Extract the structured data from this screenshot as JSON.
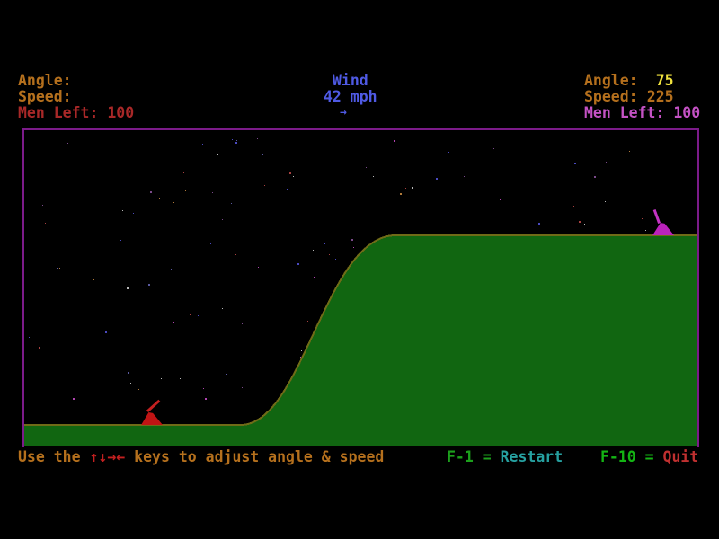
{
  "hud": {
    "left_player": {
      "angle_label": "Angle:",
      "angle_value": "",
      "speed_label": "Speed:",
      "speed_value": "",
      "men_left": "Men Left: 100"
    },
    "wind": {
      "label": "Wind",
      "value": "42 mph",
      "direction_arrow": "→"
    },
    "right_player": {
      "angle_label": "Angle:",
      "angle_value": "75",
      "speed_label": "Speed:",
      "speed_value": "225",
      "men_left": "Men Left: 100"
    }
  },
  "status_bar": {
    "help": {
      "prefix": "Use the ",
      "arrow_keys": "↑↓→←",
      "suffix": " keys to adjust angle & speed"
    },
    "restart": {
      "keys": "F-1 = ",
      "label": "Restart"
    },
    "quit": {
      "keys": "F-10 = ",
      "label": "Quit"
    }
  },
  "colors": {
    "hud_label_brown": "#b5701d",
    "men_left_red": "#a82828",
    "men_left_magenta": "#c452c4",
    "wind_blue": "#4f5ae4",
    "angle_value_yellow": "#f0e23e",
    "border_purple": "#7c1b8a",
    "terrain_green": "#116611",
    "terrain_outline_olive": "#6f6b17",
    "cannon_left_red": "#c01414",
    "cannon_right_magenta": "#bb22bb",
    "restart_teal": "#26a0a0",
    "fkey_green": "#1ca01c",
    "quit_red": "#c03030"
  },
  "stars": {
    "count": 150,
    "colors": [
      "#4a4ac0",
      "#b044b0",
      "#b07a3a",
      "#b8b8b8",
      "#7a4a8a",
      "#a84040",
      "#5a5aa0"
    ]
  }
}
